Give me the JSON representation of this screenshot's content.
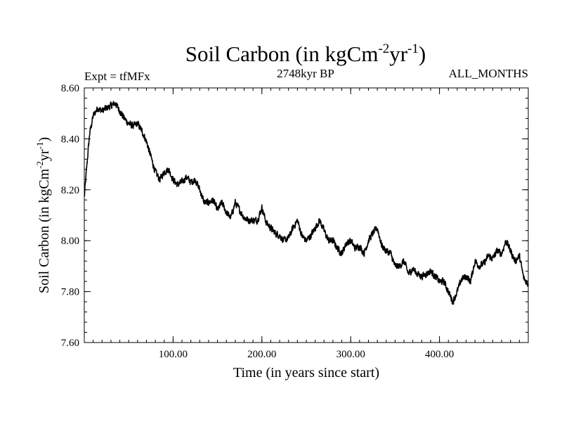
{
  "chart_data": {
    "type": "line",
    "title": "Soil Carbon (in kgCm",
    "title_sup1": "-2",
    "title_mid": "yr",
    "title_sup2": "-1",
    "title_end": ")",
    "experiment": "Expt = tfMFx",
    "period": "2748kyr BP",
    "months": "ALL_MONTHS",
    "xlabel": "Time (in years since start)",
    "ylabel": "Soil Carbon (in kgCm",
    "ylabel_sup1": "-2",
    "ylabel_mid": "yr",
    "ylabel_sup2": "-1",
    "ylabel_end": ")",
    "xlim": [
      0,
      500
    ],
    "ylim": [
      7.6,
      8.6
    ],
    "x_ticks": [
      100,
      200,
      300,
      400
    ],
    "x_tick_labels": [
      "100.00",
      "200.00",
      "300.00",
      "400.00"
    ],
    "y_ticks": [
      7.6,
      7.8,
      8.0,
      8.2,
      8.4,
      8.6
    ],
    "y_tick_labels": [
      "7.60",
      "7.80",
      "8.00",
      "8.20",
      "8.40",
      "8.60"
    ],
    "x_minor_step": 10,
    "y_minor_step": 0.04,
    "series": [
      {
        "name": "Soil Carbon",
        "color": "#000000",
        "noise_amplitude": 0.012,
        "x": [
          0,
          3,
          6,
          10,
          15,
          20,
          25,
          30,
          35,
          40,
          45,
          50,
          55,
          60,
          65,
          70,
          75,
          80,
          85,
          90,
          95,
          100,
          105,
          110,
          115,
          120,
          125,
          130,
          135,
          140,
          145,
          150,
          155,
          160,
          165,
          170,
          175,
          180,
          185,
          190,
          195,
          200,
          205,
          210,
          215,
          220,
          225,
          230,
          235,
          240,
          245,
          250,
          255,
          260,
          265,
          270,
          275,
          280,
          285,
          290,
          295,
          300,
          305,
          310,
          315,
          320,
          325,
          330,
          335,
          340,
          345,
          350,
          355,
          360,
          365,
          370,
          375,
          380,
          385,
          390,
          395,
          400,
          405,
          410,
          415,
          420,
          425,
          430,
          435,
          440,
          445,
          450,
          455,
          460,
          465,
          470,
          475,
          480,
          485,
          490,
          495,
          500
        ],
        "values": [
          8.17,
          8.3,
          8.42,
          8.49,
          8.52,
          8.51,
          8.52,
          8.53,
          8.54,
          8.51,
          8.48,
          8.46,
          8.45,
          8.46,
          8.43,
          8.39,
          8.33,
          8.27,
          8.24,
          8.27,
          8.28,
          8.24,
          8.22,
          8.23,
          8.25,
          8.23,
          8.24,
          8.2,
          8.15,
          8.15,
          8.16,
          8.12,
          8.15,
          8.11,
          8.09,
          8.15,
          8.12,
          8.09,
          8.08,
          8.08,
          8.08,
          8.13,
          8.07,
          8.05,
          8.03,
          8.02,
          8.0,
          8.01,
          8.05,
          8.08,
          8.02,
          8.0,
          8.02,
          8.05,
          8.08,
          8.04,
          8.0,
          8.0,
          7.97,
          7.95,
          7.99,
          8.0,
          7.97,
          7.98,
          7.95,
          8.0,
          8.03,
          8.05,
          7.98,
          7.96,
          7.95,
          7.9,
          7.9,
          7.92,
          7.87,
          7.89,
          7.87,
          7.86,
          7.87,
          7.88,
          7.86,
          7.84,
          7.84,
          7.8,
          7.76,
          7.8,
          7.85,
          7.86,
          7.84,
          7.92,
          7.9,
          7.91,
          7.94,
          7.93,
          7.96,
          7.95,
          8.0,
          7.96,
          7.92,
          7.94,
          7.85,
          7.83
        ]
      }
    ]
  }
}
